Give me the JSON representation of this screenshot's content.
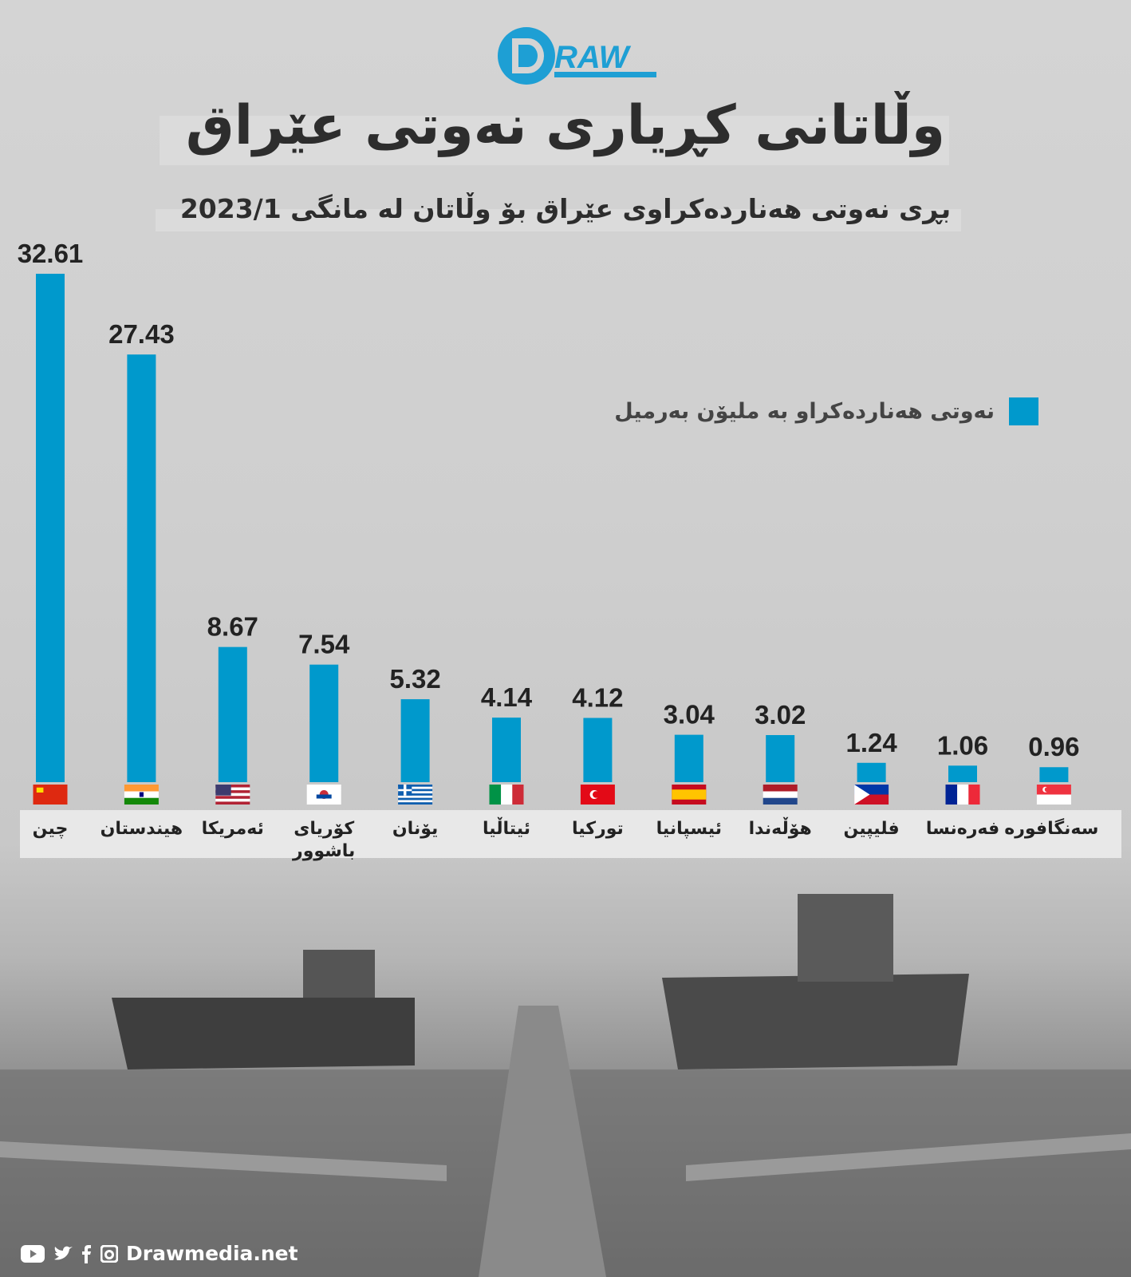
{
  "brand": {
    "logo_text": "DRAW"
  },
  "footer": {
    "site": "Drawmedia.net",
    "icons": [
      "youtube-icon",
      "twitter-icon",
      "facebook-icon",
      "instagram-icon"
    ]
  },
  "colors": {
    "bar": "#0099cc",
    "text": "#222222"
  },
  "chart_data": {
    "type": "bar",
    "title": "وڵاتانی کڕیاری نەوتی عێراق",
    "subtitle": "بڕی نەوتی هەناردەکراوی عێراق بۆ وڵاتان لە مانگی 2023/1",
    "legend": {
      "label": "نەوتی هەناردەکراو بە ملیۆن بەرمیل",
      "placement": "top-right"
    },
    "categories": [
      "چین",
      "هیندستان",
      "ئەمریکا",
      "کۆریای باشوور",
      "یۆنان",
      "ئیتاڵیا",
      "تورکیا",
      "ئیسپانیا",
      "هۆڵەندا",
      "فلیپین",
      "فەرەنسا",
      "سەنگافورە"
    ],
    "flags": [
      "china",
      "india",
      "usa",
      "south-korea",
      "greece",
      "italy",
      "turkey",
      "spain",
      "netherlands",
      "philippines",
      "france",
      "singapore"
    ],
    "values": [
      32.61,
      27.43,
      8.67,
      7.54,
      5.32,
      4.14,
      4.12,
      3.04,
      3.02,
      1.24,
      1.06,
      0.96
    ],
    "value_labels": [
      "32.61",
      "27.43",
      "8.67",
      "7.54",
      "5.32",
      "4.14",
      "4.12",
      "3.04",
      "3.02",
      "1.24",
      "1.06",
      "0.96"
    ],
    "ylim": [
      0,
      32.61
    ],
    "xlabel": "",
    "ylabel": "",
    "grid": false
  }
}
